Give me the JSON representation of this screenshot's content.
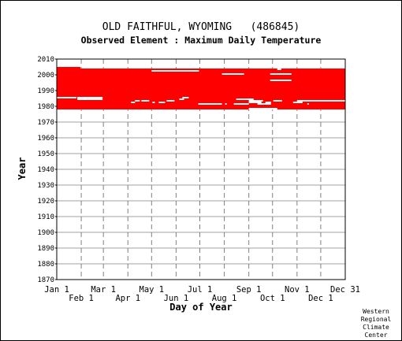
{
  "chart_data": {
    "type": "heatmap",
    "title": "OLD FAITHFUL, WYOMING   (486845)",
    "subtitle": "Observed Element : Maximum Daily Temperature",
    "xlabel": "Day of Year",
    "ylabel": "Year",
    "x_ticks_upper": [
      "Jan 1",
      "Mar 1",
      "May 1",
      "Jul 1",
      "Sep 1",
      "Nov 1",
      "Dec 31"
    ],
    "x_ticks_lower": [
      "Feb 1",
      "Apr 1",
      "Jun 1",
      "Aug 1",
      "Oct 1",
      "Dec 1"
    ],
    "y_ticks": [
      "2010",
      "2000",
      "1990",
      "1980",
      "1970",
      "1960",
      "1950",
      "1940",
      "1930",
      "1920",
      "1910",
      "1900",
      "1890",
      "1880",
      "1870"
    ],
    "ylim": [
      1870,
      2010
    ],
    "xlim_days": [
      1,
      366
    ],
    "grid": true,
    "data_color": "#ff0000",
    "coverage_blocks": [
      {
        "year_start": 1978,
        "year_end": 2004,
        "day_start": 1,
        "day_end": 366
      },
      {
        "year_start": 2004,
        "year_end": 2005,
        "day_start": 1,
        "day_end": 31
      }
    ],
    "gaps": [
      {
        "year": 1985,
        "day_start": 1,
        "day_end": 26
      },
      {
        "year": 1985,
        "day_start": 27,
        "day_end": 59
      },
      {
        "year": 1984,
        "day_start": 27,
        "day_end": 59
      },
      {
        "year": 1984,
        "day_start": 228,
        "day_end": 250
      },
      {
        "year": 1983,
        "day_start": 100,
        "day_end": 106
      },
      {
        "year": 1983,
        "day_start": 108,
        "day_end": 118
      },
      {
        "year": 1983,
        "day_start": 140,
        "day_end": 150
      },
      {
        "year": 1982,
        "day_start": 95,
        "day_end": 100
      },
      {
        "year": 1982,
        "day_start": 122,
        "day_end": 125
      },
      {
        "year": 1982,
        "day_start": 130,
        "day_end": 138
      },
      {
        "year": 1981,
        "day_start": 180,
        "day_end": 210
      },
      {
        "year": 1981,
        "day_start": 214,
        "day_end": 216
      },
      {
        "year": 1981,
        "day_start": 225,
        "day_end": 232
      },
      {
        "year": 1981,
        "day_start": 230,
        "day_end": 244
      },
      {
        "year": 1981,
        "day_start": 255,
        "day_end": 272
      },
      {
        "year": 1982,
        "day_start": 244,
        "day_end": 260
      },
      {
        "year": 1983,
        "day_start": 244,
        "day_end": 262
      },
      {
        "year": 1983,
        "day_start": 275,
        "day_end": 286
      },
      {
        "year": 1983,
        "day_start": 305,
        "day_end": 366
      },
      {
        "year": 1982,
        "day_start": 300,
        "day_end": 312
      },
      {
        "year": 1981,
        "day_start": 318,
        "day_end": 320
      },
      {
        "year": 1982,
        "day_start": 265,
        "day_end": 272
      },
      {
        "year": 1985,
        "day_start": 160,
        "day_end": 168
      },
      {
        "year": 1984,
        "day_start": 156,
        "day_end": 162
      },
      {
        "year": 1978,
        "day_start": 244,
        "day_end": 280
      },
      {
        "year": 2002,
        "day_start": 121,
        "day_end": 181
      },
      {
        "year": 2000,
        "day_start": 210,
        "day_end": 238
      },
      {
        "year": 2000,
        "day_start": 271,
        "day_end": 298
      },
      {
        "year": 1996,
        "day_start": 271,
        "day_end": 298
      },
      {
        "year": 2003,
        "day_start": 280,
        "day_end": 285
      }
    ],
    "footer": [
      "Western",
      "Regional",
      "Climate",
      "Center"
    ]
  }
}
